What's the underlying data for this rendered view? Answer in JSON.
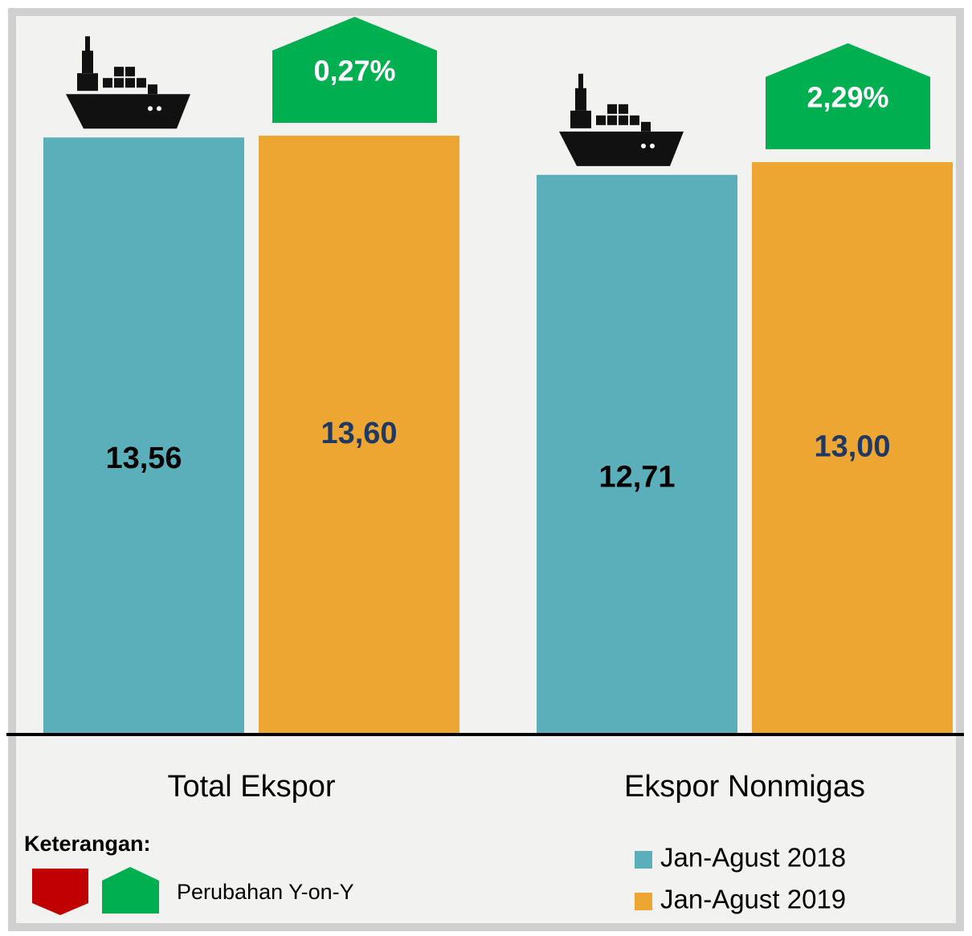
{
  "chart_data": {
    "type": "bar",
    "categories": [
      "Total Ekspor",
      "Ekspor Nonmigas"
    ],
    "series": [
      {
        "name": "Jan-Agust 2018",
        "color": "#5aafbb",
        "values": [
          13.56,
          12.71
        ],
        "value_labels": [
          "13,56",
          "12,71"
        ]
      },
      {
        "name": "Jan-Agust 2019",
        "color": "#eea632",
        "values": [
          13.6,
          13.0
        ],
        "value_labels": [
          "13,60",
          "13,00"
        ]
      }
    ],
    "changes": [
      0.27,
      2.29
    ],
    "change_labels": [
      "0,27%",
      "2,29%"
    ],
    "legend_title": "Keterangan:",
    "change_legend": {
      "label": "Perubahan Y-on-Y",
      "up_color": "#00b050",
      "down_color": "#c00000"
    }
  }
}
